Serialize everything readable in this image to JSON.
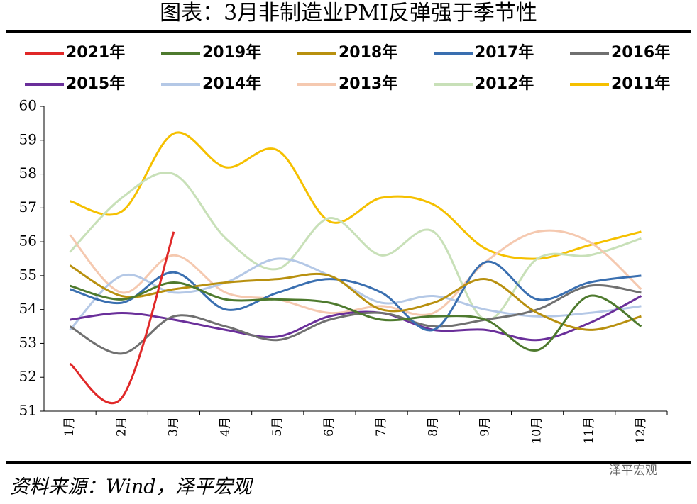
{
  "chart_data": {
    "type": "line",
    "title": "图表：3月非制造业PMI反弹强于季节性",
    "source": "资料来源：Wind，泽平宏观",
    "watermark": "泽平宏观",
    "categories": [
      "1月",
      "2月",
      "3月",
      "4月",
      "5月",
      "6月",
      "7月",
      "8月",
      "9月",
      "10月",
      "11月",
      "12月"
    ],
    "ylim": [
      51,
      60
    ],
    "yticks": [
      51,
      52,
      53,
      54,
      55,
      56,
      57,
      58,
      59,
      60
    ],
    "smooth": true,
    "series": [
      {
        "name": "2021年",
        "color": "#e02828",
        "values": [
          52.4,
          51.4,
          56.3,
          null,
          null,
          null,
          null,
          null,
          null,
          null,
          null,
          null
        ]
      },
      {
        "name": "2019年",
        "color": "#4e7a2e",
        "values": [
          54.7,
          54.3,
          54.8,
          54.3,
          54.3,
          54.2,
          53.7,
          53.8,
          53.7,
          52.8,
          54.4,
          53.5
        ]
      },
      {
        "name": "2018年",
        "color": "#b8900f",
        "values": [
          55.3,
          54.4,
          54.6,
          54.8,
          54.9,
          55.0,
          54.0,
          54.2,
          54.9,
          53.9,
          53.4,
          53.8
        ]
      },
      {
        "name": "2017年",
        "color": "#3a6fb0",
        "values": [
          54.6,
          54.2,
          55.1,
          54.0,
          54.5,
          54.9,
          54.5,
          53.4,
          55.4,
          54.3,
          54.8,
          55.0
        ]
      },
      {
        "name": "2016年",
        "color": "#707070",
        "values": [
          53.5,
          52.7,
          53.8,
          53.5,
          53.1,
          53.7,
          53.9,
          53.5,
          53.7,
          54.0,
          54.7,
          54.5
        ]
      },
      {
        "name": "2015年",
        "color": "#6a2f9a",
        "values": [
          53.7,
          53.9,
          53.7,
          53.4,
          53.2,
          53.8,
          53.9,
          53.4,
          53.4,
          53.1,
          53.6,
          54.4
        ]
      },
      {
        "name": "2014年",
        "color": "#b4c8e6",
        "values": [
          53.4,
          55.0,
          54.5,
          54.8,
          55.5,
          55.0,
          54.2,
          54.4,
          54.0,
          53.8,
          53.9,
          54.1
        ]
      },
      {
        "name": "2013年",
        "color": "#f5c9b0",
        "values": [
          56.2,
          54.5,
          55.6,
          54.5,
          54.3,
          53.9,
          54.1,
          53.9,
          55.4,
          56.3,
          56.0,
          54.6
        ]
      },
      {
        "name": "2012年",
        "color": "#c8e0b8",
        "values": [
          55.7,
          57.3,
          58.0,
          56.1,
          55.2,
          56.7,
          55.6,
          56.3,
          53.7,
          55.5,
          55.6,
          56.1
        ]
      },
      {
        "name": "2011年",
        "color": "#f5c000",
        "values": [
          57.2,
          56.9,
          59.2,
          58.2,
          58.7,
          56.6,
          57.3,
          57.1,
          55.8,
          55.5,
          55.9,
          56.3
        ]
      }
    ]
  }
}
